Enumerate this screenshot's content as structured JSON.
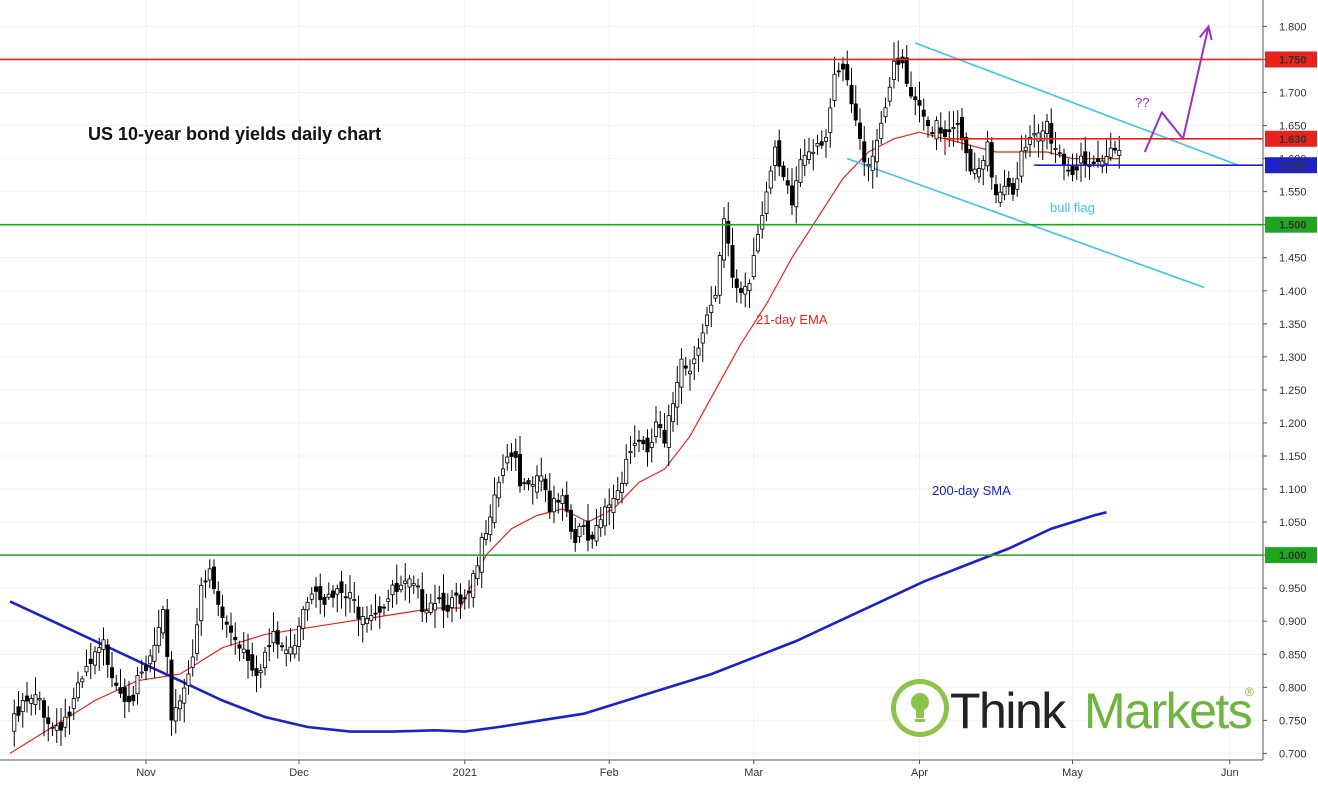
{
  "chart_data": {
    "type": "candlestick",
    "title": "US 10-year bond yields daily chart",
    "ylim": [
      0.69,
      1.84
    ],
    "y_ticks": [
      "0.700",
      "0.750",
      "0.800",
      "0.850",
      "0.900",
      "0.950",
      "1.000",
      "1.050",
      "1.100",
      "1.150",
      "1.200",
      "1.250",
      "1.300",
      "1.350",
      "1.400",
      "1.450",
      "1.500",
      "1.550",
      "1.600",
      "1.650",
      "1.700",
      "1.750",
      "1.800"
    ],
    "x_ticks": [
      {
        "label": "Nov",
        "index": 32
      },
      {
        "label": "Dec",
        "index": 68
      },
      {
        "label": "2021",
        "index": 107
      },
      {
        "label": "Feb",
        "index": 141
      },
      {
        "label": "Mar",
        "index": 175
      },
      {
        "label": "Apr",
        "index": 214
      },
      {
        "label": "May",
        "index": 250
      },
      {
        "label": "Jun",
        "index": 287
      }
    ],
    "levels": [
      {
        "value": 1.75,
        "label": "1.750",
        "color": "#e8231c"
      },
      {
        "value": 1.63,
        "label": "1.630",
        "color": "#e8231c"
      },
      {
        "value": 1.59,
        "label": "1.590",
        "color": "#1a22c8"
      },
      {
        "value": 1.5,
        "label": "1.500",
        "color": "#1fa51f"
      },
      {
        "value": 1.0,
        "label": "1.000",
        "color": "#1fa51f"
      }
    ],
    "ohlc_anchors": [
      [
        0,
        0.73
      ],
      [
        3,
        0.77
      ],
      [
        7,
        0.78
      ],
      [
        10,
        0.74
      ],
      [
        14,
        0.76
      ],
      [
        18,
        0.82
      ],
      [
        22,
        0.86
      ],
      [
        26,
        0.8
      ],
      [
        29,
        0.79
      ],
      [
        32,
        0.82
      ],
      [
        36,
        0.9
      ],
      [
        38,
        0.76
      ],
      [
        41,
        0.8
      ],
      [
        43,
        0.86
      ],
      [
        45,
        0.94
      ],
      [
        47,
        0.97
      ],
      [
        50,
        0.9
      ],
      [
        53,
        0.88
      ],
      [
        55,
        0.86
      ],
      [
        58,
        0.83
      ],
      [
        62,
        0.87
      ],
      [
        66,
        0.85
      ],
      [
        69,
        0.93
      ],
      [
        72,
        0.96
      ],
      [
        75,
        0.93
      ],
      [
        78,
        0.94
      ],
      [
        82,
        0.92
      ],
      [
        86,
        0.92
      ],
      [
        90,
        0.94
      ],
      [
        94,
        0.95
      ],
      [
        97,
        0.93
      ],
      [
        100,
        0.94
      ],
      [
        103,
        0.93
      ],
      [
        106,
        0.92
      ],
      [
        108,
        0.93
      ],
      [
        110,
        0.98
      ],
      [
        112,
        1.05
      ],
      [
        114,
        1.1
      ],
      [
        116,
        1.14
      ],
      [
        118,
        1.16
      ],
      [
        120,
        1.1
      ],
      [
        122,
        1.09
      ],
      [
        124,
        1.12
      ],
      [
        127,
        1.08
      ],
      [
        130,
        1.1
      ],
      [
        132,
        1.04
      ],
      [
        135,
        1.03
      ],
      [
        137,
        1.01
      ],
      [
        139,
        1.05
      ],
      [
        141,
        1.08
      ],
      [
        143,
        1.1
      ],
      [
        145,
        1.15
      ],
      [
        148,
        1.18
      ],
      [
        150,
        1.14
      ],
      [
        152,
        1.2
      ],
      [
        154,
        1.16
      ],
      [
        156,
        1.23
      ],
      [
        158,
        1.31
      ],
      [
        160,
        1.28
      ],
      [
        162,
        1.33
      ],
      [
        164,
        1.36
      ],
      [
        166,
        1.38
      ],
      [
        168,
        1.5
      ],
      [
        170,
        1.42
      ],
      [
        172,
        1.4
      ],
      [
        174,
        1.42
      ],
      [
        176,
        1.5
      ],
      [
        178,
        1.55
      ],
      [
        180,
        1.6
      ],
      [
        182,
        1.56
      ],
      [
        184,
        1.53
      ],
      [
        186,
        1.6
      ],
      [
        188,
        1.62
      ],
      [
        190,
        1.63
      ],
      [
        192,
        1.64
      ],
      [
        194,
        1.71
      ],
      [
        196,
        1.73
      ],
      [
        198,
        1.68
      ],
      [
        200,
        1.62
      ],
      [
        202,
        1.6
      ],
      [
        204,
        1.63
      ],
      [
        206,
        1.69
      ],
      [
        208,
        1.73
      ],
      [
        210,
        1.74
      ],
      [
        212,
        1.68
      ],
      [
        214,
        1.67
      ],
      [
        216,
        1.65
      ],
      [
        218,
        1.66
      ],
      [
        220,
        1.64
      ],
      [
        222,
        1.66
      ],
      [
        224,
        1.62
      ],
      [
        226,
        1.58
      ],
      [
        228,
        1.57
      ],
      [
        230,
        1.61
      ],
      [
        232,
        1.55
      ],
      [
        234,
        1.57
      ],
      [
        236,
        1.56
      ],
      [
        238,
        1.6
      ],
      [
        240,
        1.62
      ],
      [
        242,
        1.63
      ],
      [
        244,
        1.65
      ],
      [
        246,
        1.62
      ],
      [
        248,
        1.6
      ],
      [
        250,
        1.58
      ],
      [
        252,
        1.61
      ],
      [
        254,
        1.57
      ],
      [
        256,
        1.58
      ],
      [
        258,
        1.6
      ],
      [
        260,
        1.62
      ],
      [
        261,
        1.63
      ]
    ],
    "series": [
      {
        "name": "21-day EMA",
        "color": "#e8231c",
        "points": [
          [
            0,
            0.7
          ],
          [
            10,
            0.74
          ],
          [
            20,
            0.78
          ],
          [
            30,
            0.81
          ],
          [
            40,
            0.82
          ],
          [
            50,
            0.86
          ],
          [
            60,
            0.88
          ],
          [
            70,
            0.89
          ],
          [
            80,
            0.9
          ],
          [
            90,
            0.91
          ],
          [
            100,
            0.92
          ],
          [
            106,
            0.92
          ],
          [
            112,
            1.0
          ],
          [
            118,
            1.04
          ],
          [
            124,
            1.06
          ],
          [
            130,
            1.07
          ],
          [
            136,
            1.05
          ],
          [
            142,
            1.07
          ],
          [
            148,
            1.11
          ],
          [
            154,
            1.13
          ],
          [
            160,
            1.18
          ],
          [
            166,
            1.25
          ],
          [
            172,
            1.32
          ],
          [
            178,
            1.38
          ],
          [
            184,
            1.45
          ],
          [
            190,
            1.51
          ],
          [
            196,
            1.57
          ],
          [
            202,
            1.61
          ],
          [
            208,
            1.63
          ],
          [
            214,
            1.64
          ],
          [
            220,
            1.63
          ],
          [
            226,
            1.62
          ],
          [
            232,
            1.61
          ],
          [
            238,
            1.61
          ],
          [
            244,
            1.61
          ],
          [
            250,
            1.6
          ],
          [
            256,
            1.6
          ],
          [
            261,
            1.6
          ]
        ]
      },
      {
        "name": "200-day SMA",
        "color": "#1a22c8",
        "points": [
          [
            0,
            0.93
          ],
          [
            10,
            0.9
          ],
          [
            20,
            0.87
          ],
          [
            30,
            0.84
          ],
          [
            40,
            0.81
          ],
          [
            50,
            0.78
          ],
          [
            60,
            0.755
          ],
          [
            70,
            0.74
          ],
          [
            80,
            0.733
          ],
          [
            90,
            0.733
          ],
          [
            100,
            0.735
          ],
          [
            107,
            0.733
          ],
          [
            115,
            0.74
          ],
          [
            125,
            0.75
          ],
          [
            135,
            0.76
          ],
          [
            145,
            0.78
          ],
          [
            155,
            0.8
          ],
          [
            165,
            0.82
          ],
          [
            175,
            0.845
          ],
          [
            185,
            0.87
          ],
          [
            195,
            0.9
          ],
          [
            205,
            0.93
          ],
          [
            215,
            0.96
          ],
          [
            225,
            0.985
          ],
          [
            235,
            1.01
          ],
          [
            245,
            1.04
          ],
          [
            255,
            1.06
          ],
          [
            258,
            1.065
          ]
        ]
      }
    ],
    "annotations": {
      "ema_label": "21-day EMA",
      "sma_label": "200-day SMA",
      "flag_label": "bull flag",
      "question": "??"
    },
    "bull_flag": {
      "upper": [
        [
          213,
          1.775
        ],
        [
          289,
          1.59
        ]
      ],
      "lower": [
        [
          197,
          1.6
        ],
        [
          281,
          1.405
        ]
      ],
      "color": "#3fc3ea"
    },
    "projection": {
      "color": "#9b30c9",
      "points": [
        [
          267,
          1.61
        ],
        [
          271,
          1.67
        ],
        [
          276,
          1.63
        ],
        [
          282,
          1.8
        ]
      ]
    }
  },
  "brand": {
    "name_dark": "Think",
    "name_green": "Markets",
    "registered": "®",
    "colors": {
      "dark": "#222222",
      "green": "#6fb43f",
      "bulb": "#8cc34a"
    }
  }
}
